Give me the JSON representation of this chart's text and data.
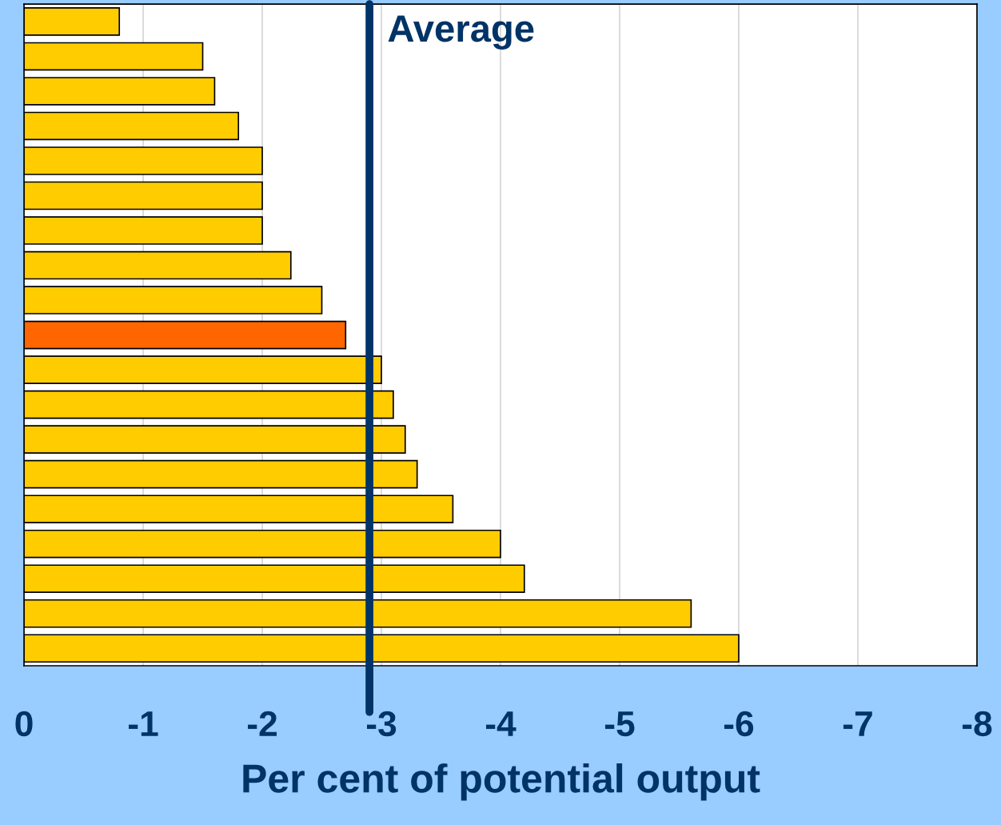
{
  "chart_data": {
    "type": "bar",
    "orientation": "horizontal",
    "xlabel": "Per cent of potential output",
    "categories": [
      null,
      null,
      null,
      null,
      null,
      null,
      null,
      null,
      null,
      null,
      null,
      null,
      null,
      null,
      null,
      null,
      null,
      null,
      null
    ],
    "values": [
      -0.8,
      -1.5,
      -1.6,
      -1.8,
      -2.0,
      -2.0,
      -2.0,
      -2.24,
      -2.5,
      -2.7,
      -3.0,
      -3.1,
      -3.2,
      -3.3,
      -3.6,
      -4.0,
      -4.2,
      -5.6,
      -6.0
    ],
    "colors": [
      "#ffcc00",
      "#ffcc00",
      "#ffcc00",
      "#ffcc00",
      "#ffcc00",
      "#ffcc00",
      "#ffcc00",
      "#ffcc00",
      "#ffcc00",
      "#ff6600",
      "#ffcc00",
      "#ffcc00",
      "#ffcc00",
      "#ffcc00",
      "#ffcc00",
      "#ffcc00",
      "#ffcc00",
      "#ffcc00",
      "#ffcc00"
    ],
    "xlim": [
      0,
      -8
    ],
    "xticks": [
      0,
      -1,
      -2,
      -3,
      -4,
      -5,
      -6,
      -7,
      -8
    ],
    "grid": "x",
    "ref_lines": [
      {
        "axis": "x",
        "value": -2.9,
        "label": "Average",
        "color": "#003366"
      }
    ]
  }
}
